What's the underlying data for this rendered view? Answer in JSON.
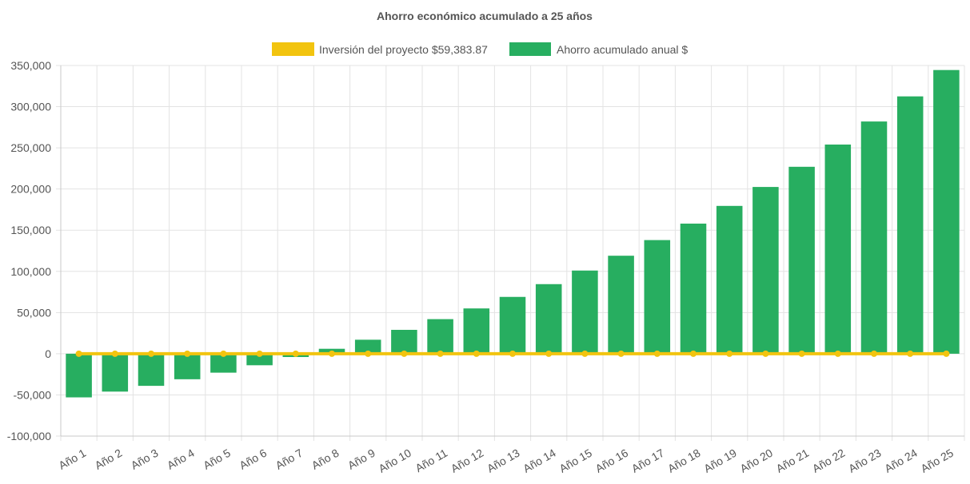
{
  "colors": {
    "investment": "#f2c40f",
    "savings": "#27ae60",
    "text": "#555555",
    "grid": "#e3e3e3"
  },
  "chart_data": {
    "type": "bar",
    "title": "Ahorro económico acumulado a 25 años",
    "categories": [
      "Año 1",
      "Año 2",
      "Año 3",
      "Año 4",
      "Año 5",
      "Año 6",
      "Año 7",
      "Año 8",
      "Año 9",
      "Año 10",
      "Año 11",
      "Año 12",
      "Año 13",
      "Año 14",
      "Año 15",
      "Año 16",
      "Año 17",
      "Año 18",
      "Año 19",
      "Año 20",
      "Año 21",
      "Año 22",
      "Año 23",
      "Año 24",
      "Año 25"
    ],
    "series": [
      {
        "name": "Inversión del proyecto $59,383.87",
        "type": "line",
        "color": "#f2c40f",
        "values": [
          0,
          0,
          0,
          0,
          0,
          0,
          0,
          0,
          0,
          0,
          0,
          0,
          0,
          0,
          0,
          0,
          0,
          0,
          0,
          0,
          0,
          0,
          0,
          0,
          0
        ]
      },
      {
        "name": "Ahorro acumulado anual $",
        "type": "bar",
        "color": "#27ae60",
        "values": [
          -53000,
          -46000,
          -39000,
          -31000,
          -23000,
          -14000,
          -4000,
          6000,
          17000,
          29000,
          42000,
          55000,
          69000,
          84500,
          101000,
          119000,
          138000,
          158000,
          179500,
          202500,
          227000,
          254000,
          282000,
          312500,
          344500
        ]
      }
    ],
    "ylim": [
      -100000,
      350000
    ],
    "yticks": [
      -100000,
      -50000,
      0,
      50000,
      100000,
      150000,
      200000,
      250000,
      300000,
      350000
    ],
    "ytick_labels": [
      "-100,000",
      "-50,000",
      "0",
      "50,000",
      "100,000",
      "150,000",
      "200,000",
      "250,000",
      "300,000",
      "350,000"
    ],
    "grid": true,
    "legend_position": "top-center"
  }
}
